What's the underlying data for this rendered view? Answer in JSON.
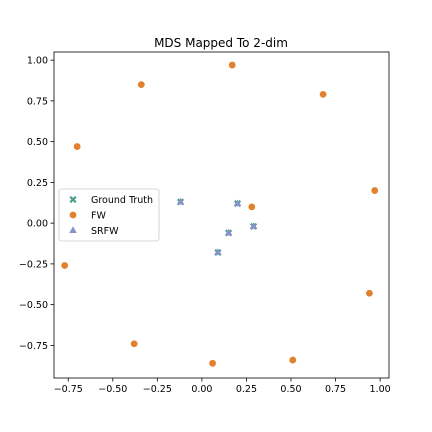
{
  "chart_data": {
    "type": "scatter",
    "title": "MDS Mapped To 2-dim",
    "xlabel": "",
    "ylabel": "",
    "xlim": [
      -0.83,
      1.05
    ],
    "ylim": [
      -0.95,
      1.05
    ],
    "xticks": [
      -0.75,
      -0.5,
      -0.25,
      0.0,
      0.25,
      0.5,
      0.75,
      1.0
    ],
    "xtick_labels": [
      "−0.75",
      "−0.50",
      "−0.25",
      "0.00",
      "0.25",
      "0.50",
      "0.75",
      "1.00"
    ],
    "yticks": [
      -0.75,
      -0.5,
      -0.25,
      0.0,
      0.25,
      0.5,
      0.75,
      1.0
    ],
    "ytick_labels": [
      "−0.75",
      "−0.50",
      "−0.25",
      "0.00",
      "0.25",
      "0.50",
      "0.75",
      "1.00"
    ],
    "grid": false,
    "legend_position": "center-left",
    "series": [
      {
        "name": "Ground Truth",
        "marker": "x",
        "color": "#4c9f8f",
        "points": [
          [
            -0.12,
            0.13
          ],
          [
            0.2,
            0.12
          ],
          [
            0.15,
            -0.06
          ],
          [
            0.29,
            -0.02
          ],
          [
            0.09,
            -0.18
          ]
        ]
      },
      {
        "name": "FW",
        "marker": "circle",
        "color": "#e1812c",
        "points": [
          [
            0.17,
            0.97
          ],
          [
            -0.34,
            0.85
          ],
          [
            0.68,
            0.79
          ],
          [
            -0.7,
            0.47
          ],
          [
            0.97,
            0.2
          ],
          [
            0.28,
            0.1
          ],
          [
            -0.77,
            -0.26
          ],
          [
            0.94,
            -0.43
          ],
          [
            -0.38,
            -0.74
          ],
          [
            0.06,
            -0.86
          ],
          [
            0.51,
            -0.84
          ]
        ]
      },
      {
        "name": "SRFW",
        "marker": "triangle",
        "color": "#8a93c9",
        "points": [
          [
            -0.12,
            0.13
          ],
          [
            0.2,
            0.12
          ],
          [
            0.15,
            -0.06
          ],
          [
            0.29,
            -0.02
          ],
          [
            0.09,
            -0.18
          ]
        ]
      }
    ]
  }
}
